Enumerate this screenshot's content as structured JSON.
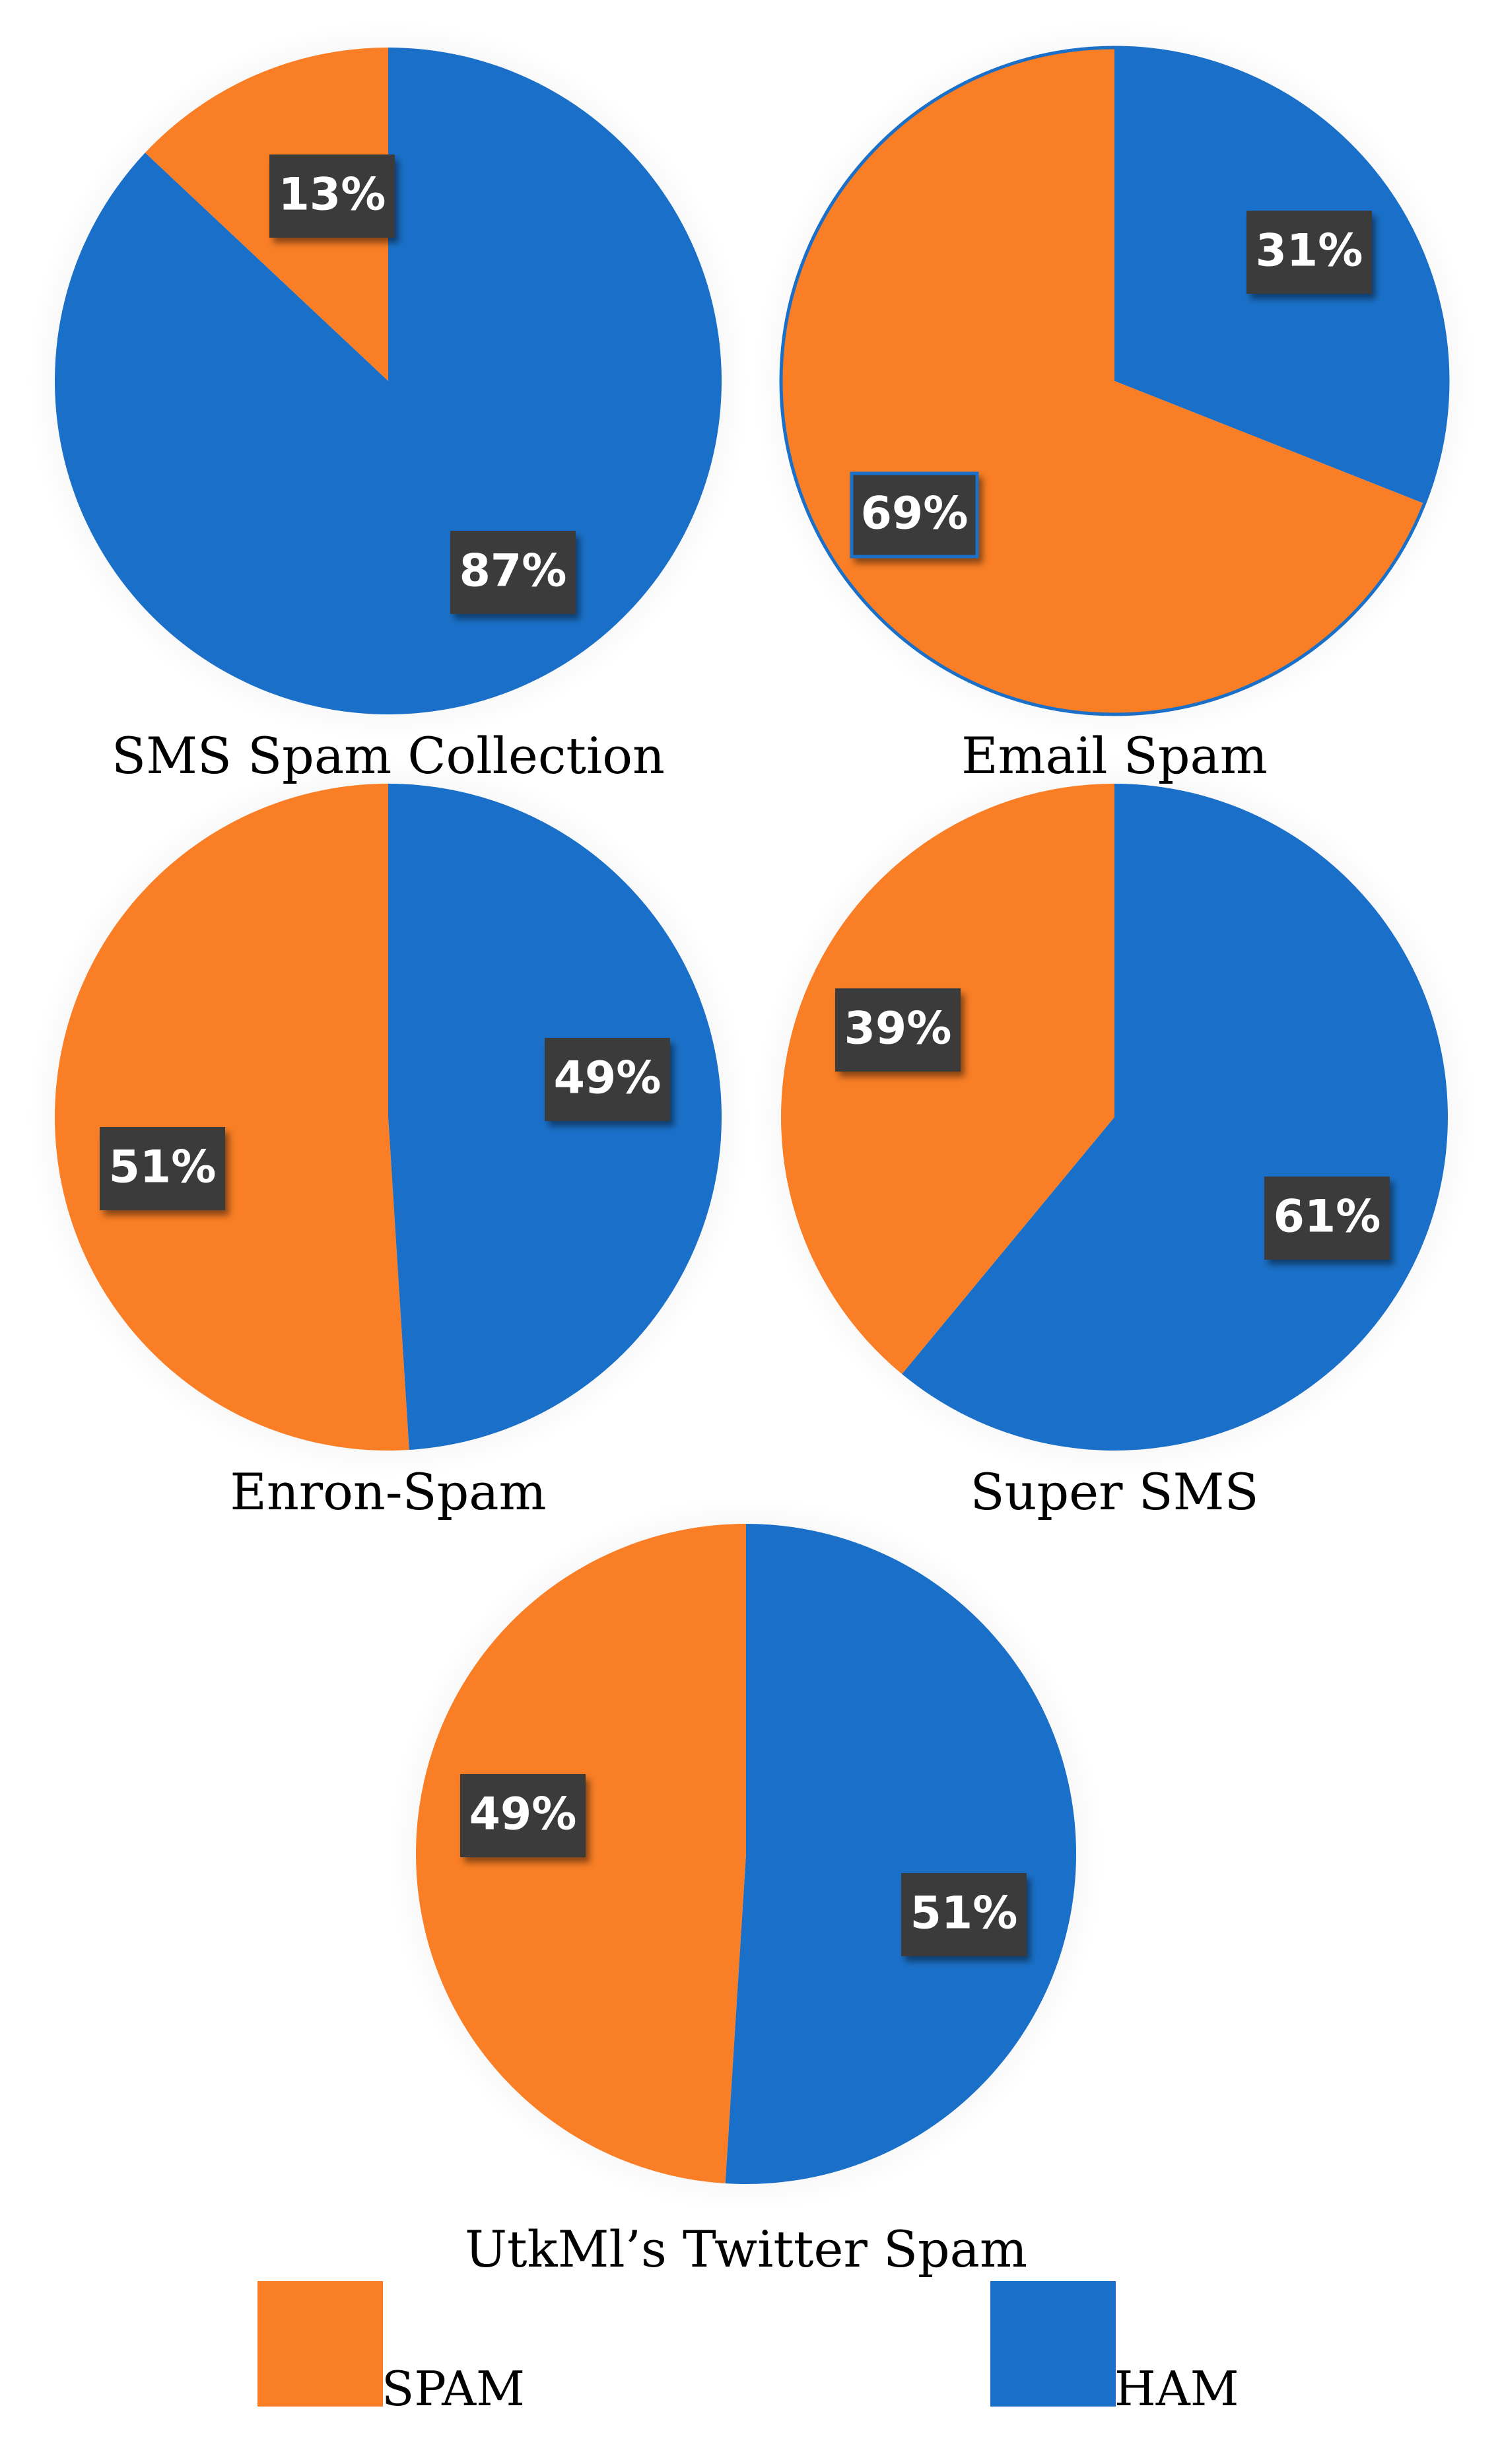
{
  "colors": {
    "spam": "#F97E25",
    "ham": "#1A70C8",
    "label_bg": "#3A3A3A",
    "label_text": "#FFFFFF"
  },
  "legend": [
    {
      "key": "spam",
      "label": "SPAM"
    },
    {
      "key": "ham",
      "label": "HAM"
    }
  ],
  "chart_data": [
    {
      "type": "pie",
      "title": "SMS Spam Collection",
      "categories": [
        "SPAM",
        "HAM"
      ],
      "values": [
        13,
        87
      ],
      "labels": [
        "13%",
        "87%"
      ]
    },
    {
      "type": "pie",
      "title": "Email Spam",
      "categories": [
        "SPAM",
        "HAM"
      ],
      "values": [
        69,
        31
      ],
      "labels": [
        "69%",
        "31%"
      ]
    },
    {
      "type": "pie",
      "title": "Enron-Spam",
      "categories": [
        "SPAM",
        "HAM"
      ],
      "values": [
        51,
        49
      ],
      "labels": [
        "51%",
        "49%"
      ]
    },
    {
      "type": "pie",
      "title": "Super SMS",
      "categories": [
        "SPAM",
        "HAM"
      ],
      "values": [
        39,
        61
      ],
      "labels": [
        "39%",
        "61%"
      ]
    },
    {
      "type": "pie",
      "title": "UtkMl’s Twitter Spam",
      "categories": [
        "SPAM",
        "HAM"
      ],
      "values": [
        49,
        51
      ],
      "labels": [
        "49%",
        "51%"
      ]
    }
  ]
}
